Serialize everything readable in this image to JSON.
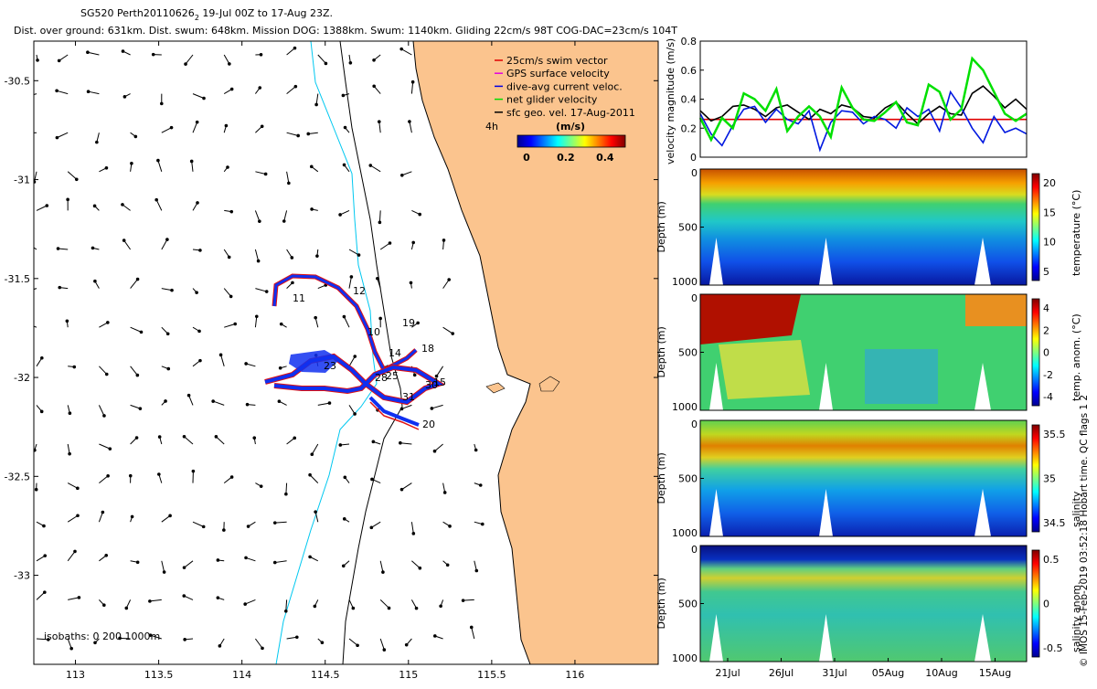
{
  "chart_data": [
    {
      "type": "quiver",
      "title_line1": "SG520 Perth20110626",
      "title_sub": "2",
      "title_tail": " 19-Jul 00Z to 17-Aug 23Z.",
      "title_line2": "Dist. over ground: 631km. Dist. swum: 648km. Mission DOG: 1388km. Swum: 1140km. Gliding 22cm/s 98T COG-DAC=23cm/s 104T",
      "xlim": [
        112.75,
        116.5
      ],
      "ylim": [
        -33.45,
        -30.3
      ],
      "xticks": [
        "113",
        "113.5",
        "114",
        "114.5",
        "115",
        "115.5",
        "116"
      ],
      "yticks": [
        "-30.5",
        "-31",
        "-31.5",
        "-32",
        "-32.5",
        "-33"
      ],
      "legend": [
        "25cm/s swim vector",
        "GPS surface velocity",
        "dive-avg current veloc.",
        "net glider velocity",
        "sfc geo. vel. 17-Aug-2011"
      ],
      "legend_colors": [
        "#e00000",
        "#e000e0",
        "#0000e0",
        "#00dd00",
        "#000000"
      ],
      "colorbar_label": "(m/s)",
      "colorbar_interval": "4h",
      "colorbar_ticks": [
        "0",
        "0.2",
        "0.4"
      ],
      "day_labels": [
        "11",
        "12",
        "10",
        "19",
        "18",
        "14",
        "23",
        "28",
        "25",
        "15",
        "30",
        "31",
        "20"
      ],
      "isobaths": "isobaths: 0   200   1000m",
      "land_color": "#fbc48e"
    },
    {
      "type": "line",
      "ylabel": "velocity magnitude (m/s)",
      "ylim": [
        0,
        0.8
      ],
      "yticks": [
        "0",
        "0.2",
        "0.4",
        "0.6",
        "0.8"
      ],
      "xlim_days": [
        0,
        30
      ],
      "series": [
        {
          "color": "#e00000",
          "values": [
            0.26,
            0.26,
            0.26,
            0.26,
            0.26,
            0.26,
            0.26,
            0.26,
            0.26,
            0.26,
            0.26,
            0.26,
            0.26,
            0.26,
            0.26,
            0.26,
            0.26,
            0.26,
            0.26,
            0.26,
            0.26,
            0.26,
            0.26,
            0.26,
            0.26,
            0.26,
            0.26,
            0.26,
            0.26,
            0.26,
            0.26
          ]
        },
        {
          "color": "#000000",
          "values": [
            0.32,
            0.25,
            0.28,
            0.35,
            0.36,
            0.33,
            0.28,
            0.34,
            0.36,
            0.31,
            0.26,
            0.33,
            0.3,
            0.36,
            0.34,
            0.28,
            0.27,
            0.34,
            0.38,
            0.3,
            0.23,
            0.3,
            0.35,
            0.3,
            0.29,
            0.44,
            0.49,
            0.42,
            0.34,
            0.4,
            0.33
          ]
        },
        {
          "color": "#0018e0",
          "values": [
            0.3,
            0.16,
            0.08,
            0.22,
            0.33,
            0.35,
            0.24,
            0.33,
            0.26,
            0.23,
            0.32,
            0.05,
            0.24,
            0.32,
            0.31,
            0.23,
            0.28,
            0.26,
            0.2,
            0.34,
            0.28,
            0.33,
            0.18,
            0.45,
            0.34,
            0.2,
            0.1,
            0.28,
            0.17,
            0.2,
            0.16
          ]
        },
        {
          "color": "#00e000",
          "values": [
            0.27,
            0.12,
            0.27,
            0.2,
            0.44,
            0.4,
            0.32,
            0.47,
            0.18,
            0.28,
            0.35,
            0.28,
            0.14,
            0.48,
            0.34,
            0.26,
            0.25,
            0.31,
            0.38,
            0.24,
            0.22,
            0.5,
            0.45,
            0.26,
            0.33,
            0.68,
            0.6,
            0.45,
            0.3,
            0.25,
            0.3
          ]
        }
      ]
    },
    {
      "type": "heatmap",
      "ylabel": "Depth (m)",
      "clabel": "temperature (°C)",
      "yticks": [
        "0",
        "500",
        "1000"
      ],
      "cticks": [
        "20",
        "15",
        "10",
        "5"
      ]
    },
    {
      "type": "heatmap",
      "ylabel": "Depth (m)",
      "clabel": "temp. anom. (°C)",
      "yticks": [
        "0",
        "500",
        "1000"
      ],
      "cticks": [
        "4",
        "2",
        "0",
        "-2",
        "-4"
      ]
    },
    {
      "type": "heatmap",
      "ylabel": "Depth (m)",
      "clabel": "salinity",
      "yticks": [
        "0",
        "500",
        "1000"
      ],
      "cticks": [
        "35.5",
        "35",
        "34.5"
      ]
    },
    {
      "type": "heatmap",
      "ylabel": "Depth (m)",
      "clabel": "salinity anom.",
      "yticks": [
        "0",
        "500",
        "1000"
      ],
      "cticks": [
        "0.5",
        "0",
        "-0.5"
      ],
      "xticks": [
        "21Jul",
        "26Jul",
        "31Jul",
        "05Aug",
        "10Aug",
        "15Aug"
      ]
    }
  ],
  "side_text": "© IMOS 15-Feb-2019 03:52:18 Hobart time. QC flags 1  2"
}
